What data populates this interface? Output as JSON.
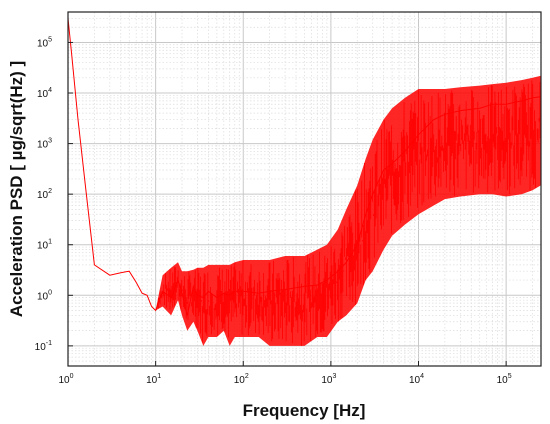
{
  "chart_data": {
    "type": "line",
    "xlabel": "Frequency [Hz]",
    "ylabel": "Acceleration PSD [ µg/sqrt(Hz) ]",
    "x_scale": "log",
    "y_scale": "log",
    "xlim": [
      1,
      250000
    ],
    "ylim": [
      0.04,
      400000
    ],
    "x_ticks": [
      1,
      10,
      100,
      1000,
      10000,
      100000
    ],
    "x_tick_labels": [
      {
        "base": "10",
        "exp": "0"
      },
      {
        "base": "10",
        "exp": "1"
      },
      {
        "base": "10",
        "exp": "2"
      },
      {
        "base": "10",
        "exp": "3"
      },
      {
        "base": "10",
        "exp": "4"
      },
      {
        "base": "10",
        "exp": "5"
      }
    ],
    "y_ticks": [
      0.1,
      1,
      10,
      100,
      1000,
      10000,
      100000
    ],
    "y_tick_labels": [
      {
        "base": "10",
        "exp": "-1"
      },
      {
        "base": "10",
        "exp": "0"
      },
      {
        "base": "10",
        "exp": "1"
      },
      {
        "base": "10",
        "exp": "2"
      },
      {
        "base": "10",
        "exp": "3"
      },
      {
        "base": "10",
        "exp": "4"
      },
      {
        "base": "10",
        "exp": "5"
      }
    ],
    "grid": true,
    "series_color": "#ff0000",
    "series": [
      {
        "x": [
          1,
          1.1,
          1.3,
          1.6,
          2,
          3,
          4,
          5,
          6,
          7,
          8,
          9,
          10,
          12,
          15,
          18,
          20,
          23,
          27,
          30,
          35,
          40,
          50,
          60,
          70,
          80,
          100,
          150,
          200,
          300,
          500,
          700,
          900,
          1200,
          1500,
          2000,
          2500,
          3000,
          4000,
          5000,
          7000,
          10000,
          15000,
          20000,
          30000,
          50000,
          70000,
          100000,
          150000,
          200000,
          250000
        ],
        "y": [
          300000,
          60000,
          3000,
          120,
          4,
          2.5,
          2.8,
          3,
          1.8,
          1.1,
          1.0,
          0.6,
          0.5,
          1.2,
          0.9,
          2.0,
          1.1,
          0.4,
          1.5,
          1.0,
          0.9,
          1.2,
          0.9,
          1.1,
          1.0,
          1.2,
          1.2,
          1.1,
          1.2,
          1.3,
          1.5,
          1.6,
          2.0,
          3.0,
          4.5,
          10,
          40,
          100,
          300,
          400,
          700,
          1500,
          3000,
          3800,
          4500,
          5000,
          6000,
          6000,
          7000,
          8000,
          8500
        ],
        "y_low": [
          300000,
          60000,
          3000,
          120,
          4,
          2.5,
          2.8,
          3,
          1.8,
          1.1,
          1.0,
          0.6,
          0.5,
          0.6,
          0.4,
          0.8,
          0.4,
          0.2,
          0.3,
          0.2,
          0.1,
          0.15,
          0.15,
          0.2,
          0.1,
          0.15,
          0.15,
          0.15,
          0.1,
          0.1,
          0.1,
          0.15,
          0.15,
          0.3,
          0.4,
          0.7,
          2,
          3,
          8,
          15,
          25,
          40,
          60,
          80,
          90,
          100,
          100,
          90,
          100,
          120,
          150
        ],
        "y_high": [
          300000,
          60000,
          3000,
          120,
          4,
          2.5,
          2.8,
          3,
          1.8,
          1.1,
          1.0,
          0.6,
          0.5,
          2.5,
          3.5,
          4.5,
          3.0,
          3.0,
          3.2,
          3.5,
          3.5,
          4,
          4,
          4,
          4,
          4.5,
          5,
          5,
          5,
          6,
          6,
          8,
          10,
          20,
          50,
          150,
          500,
          1200,
          3000,
          5000,
          8000,
          12000,
          12000,
          12000,
          13000,
          14000,
          15000,
          16000,
          18000,
          20000,
          22000
        ]
      }
    ]
  }
}
